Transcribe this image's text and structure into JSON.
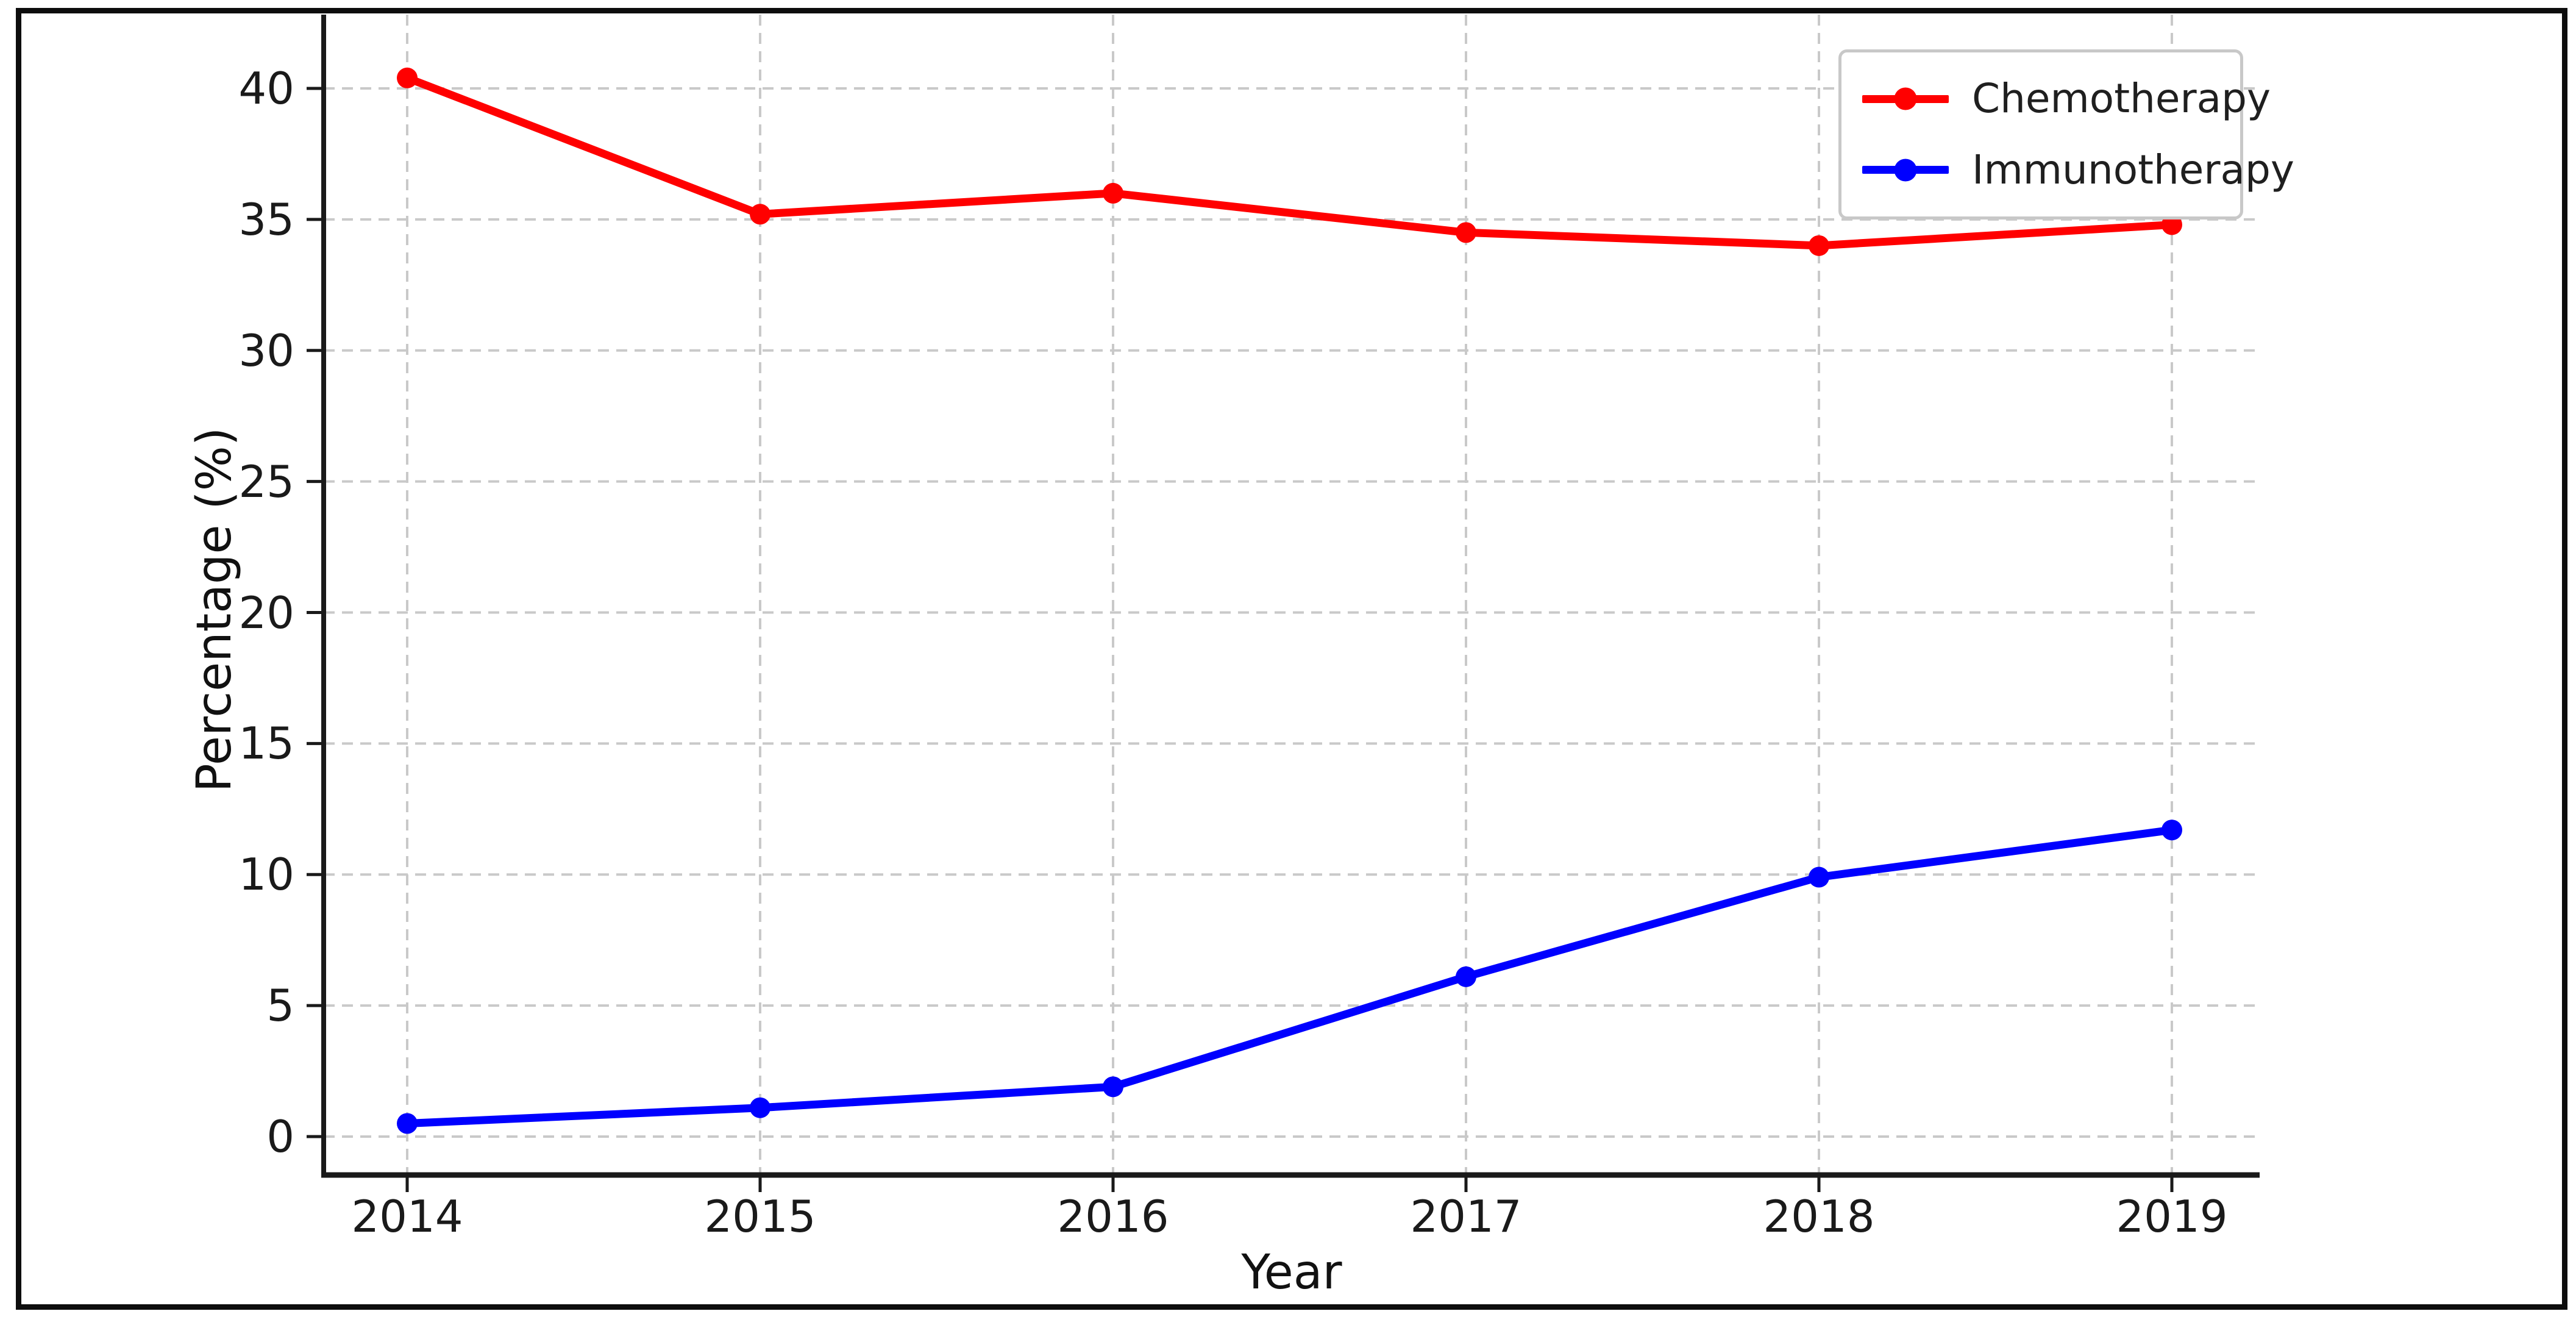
{
  "chart_data": {
    "type": "line",
    "x": [
      2014,
      2015,
      2016,
      2017,
      2018,
      2019
    ],
    "series": [
      {
        "name": "Chemotherapy",
        "color": "#ff0000",
        "values": [
          40.4,
          35.2,
          36.0,
          34.5,
          34.0,
          34.8
        ]
      },
      {
        "name": "Immunotherapy",
        "color": "#0000ff",
        "values": [
          0.5,
          1.1,
          1.9,
          6.1,
          9.9,
          11.7
        ]
      }
    ],
    "xlabel": "Year",
    "ylabel": "Percentage (%)",
    "x_ticks": [
      "2014",
      "2015",
      "2016",
      "2017",
      "2018",
      "2019"
    ],
    "y_ticks": [
      0,
      5,
      10,
      15,
      20,
      25,
      30,
      35,
      40
    ],
    "ylim": [
      -1.6,
      42.4
    ],
    "grid": true,
    "grid_style": "dashed",
    "grid_color": "#c9c9c9",
    "spine_color": "#1a1a1a",
    "legend_position": "upper right",
    "legend_items": [
      "Chemotherapy",
      "Immunotherapy"
    ]
  },
  "axes": {
    "xlabel": "Year",
    "ylabel": "Percentage (%)"
  }
}
